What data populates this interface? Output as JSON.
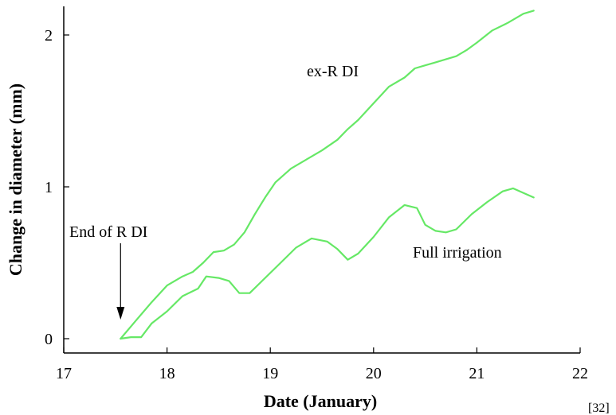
{
  "chart_data": {
    "type": "line",
    "xlabel": "Date (January)",
    "ylabel": "Change in diameter (mm)",
    "xlim": [
      17,
      22
    ],
    "ylim": [
      -0.1,
      2.2
    ],
    "x_ticks": [
      "17",
      "18",
      "19",
      "20",
      "21",
      "22"
    ],
    "y_ticks": [
      "0",
      "1",
      "2"
    ],
    "grid": false,
    "line_color": "#66e866",
    "series": [
      {
        "name": "ex-R DI",
        "x": [
          17.55,
          17.7,
          17.85,
          18.0,
          18.15,
          18.25,
          18.35,
          18.45,
          18.55,
          18.65,
          18.75,
          18.85,
          18.95,
          19.05,
          19.2,
          19.35,
          19.5,
          19.65,
          19.75,
          19.85,
          20.0,
          20.15,
          20.3,
          20.4,
          20.5,
          20.6,
          20.7,
          20.8,
          20.9,
          21.0,
          21.15,
          21.3,
          21.45,
          21.55
        ],
        "y": [
          0.0,
          0.12,
          0.24,
          0.35,
          0.41,
          0.44,
          0.5,
          0.57,
          0.58,
          0.62,
          0.7,
          0.82,
          0.93,
          1.03,
          1.12,
          1.18,
          1.24,
          1.31,
          1.38,
          1.44,
          1.55,
          1.66,
          1.72,
          1.78,
          1.8,
          1.82,
          1.84,
          1.86,
          1.9,
          1.95,
          2.03,
          2.08,
          2.14,
          2.16
        ]
      },
      {
        "name": "Full irrigation",
        "x": [
          17.55,
          17.65,
          17.75,
          17.85,
          18.0,
          18.15,
          18.3,
          18.38,
          18.5,
          18.6,
          18.7,
          18.8,
          18.95,
          19.1,
          19.25,
          19.4,
          19.55,
          19.65,
          19.75,
          19.85,
          20.0,
          20.15,
          20.3,
          20.42,
          20.5,
          20.6,
          20.7,
          20.8,
          20.95,
          21.1,
          21.25,
          21.35,
          21.45,
          21.55
        ],
        "y": [
          0.0,
          0.01,
          0.01,
          0.1,
          0.18,
          0.28,
          0.33,
          0.41,
          0.4,
          0.38,
          0.3,
          0.3,
          0.4,
          0.5,
          0.6,
          0.66,
          0.64,
          0.59,
          0.52,
          0.56,
          0.67,
          0.8,
          0.88,
          0.86,
          0.75,
          0.71,
          0.7,
          0.72,
          0.82,
          0.9,
          0.97,
          0.99,
          0.96,
          0.93
        ]
      }
    ],
    "annotations": {
      "series1_label": "ex-R DI",
      "series2_label": "Full irrigation",
      "arrow_label": "End of R DI",
      "arrow_x": 17.55
    }
  },
  "reference": "[32]"
}
